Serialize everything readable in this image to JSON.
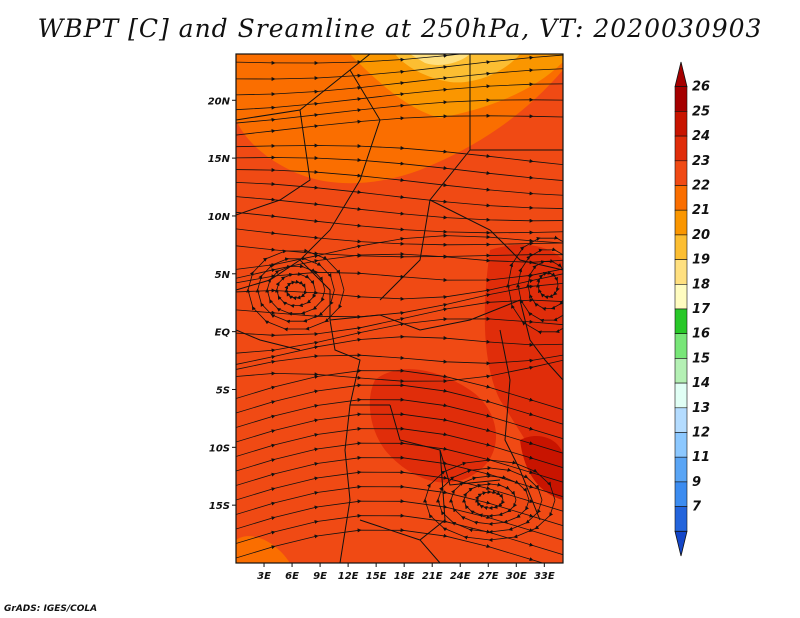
{
  "title": "WBPT [C] and Sreamline at 250hPa, VT: 2020030903",
  "credit": "GrADS: IGES/COLA",
  "map": {
    "lon_range": [
      0,
      35
    ],
    "lat_range": [
      -20,
      24
    ],
    "lat_ticks": [
      {
        "value": 20,
        "label": "20N"
      },
      {
        "value": 15,
        "label": "15N"
      },
      {
        "value": 10,
        "label": "10N"
      },
      {
        "value": 5,
        "label": "5N"
      },
      {
        "value": 0,
        "label": "EQ"
      },
      {
        "value": -5,
        "label": "5S"
      },
      {
        "value": -10,
        "label": "10S"
      },
      {
        "value": -15,
        "label": "15S"
      }
    ],
    "lon_ticks": [
      {
        "value": 3,
        "label": "3E"
      },
      {
        "value": 6,
        "label": "6E"
      },
      {
        "value": 9,
        "label": "9E"
      },
      {
        "value": 12,
        "label": "12E"
      },
      {
        "value": 15,
        "label": "15E"
      },
      {
        "value": 18,
        "label": "18E"
      },
      {
        "value": 21,
        "label": "21E"
      },
      {
        "value": 24,
        "label": "24E"
      },
      {
        "value": 27,
        "label": "27E"
      },
      {
        "value": 30,
        "label": "30E"
      },
      {
        "value": 33,
        "label": "33E"
      }
    ],
    "base_color": "#f04a14"
  },
  "colorbar": {
    "levels": [
      {
        "label": "26",
        "color": "#a50000"
      },
      {
        "label": "25",
        "color": "#c81400"
      },
      {
        "label": "24",
        "color": "#e02d0a"
      },
      {
        "label": "23",
        "color": "#f04a14"
      },
      {
        "label": "22",
        "color": "#fa6e00"
      },
      {
        "label": "21",
        "color": "#fa9600"
      },
      {
        "label": "20",
        "color": "#fcbe32"
      },
      {
        "label": "19",
        "color": "#ffe080"
      },
      {
        "label": "18",
        "color": "#fffcc0"
      },
      {
        "label": "17",
        "color": "#28c828"
      },
      {
        "label": "16",
        "color": "#78e678"
      },
      {
        "label": "15",
        "color": "#b4f0b4"
      },
      {
        "label": "14",
        "color": "#e1fff5"
      },
      {
        "label": "13",
        "color": "#b4dcff"
      },
      {
        "label": "12",
        "color": "#8cc8ff"
      },
      {
        "label": "11",
        "color": "#5aa5f5"
      },
      {
        "label": "9",
        "color": "#3c8cf0"
      },
      {
        "label": "7",
        "color": "#2364dc"
      },
      {
        "label": "",
        "color": "#1446c8"
      }
    ]
  }
}
